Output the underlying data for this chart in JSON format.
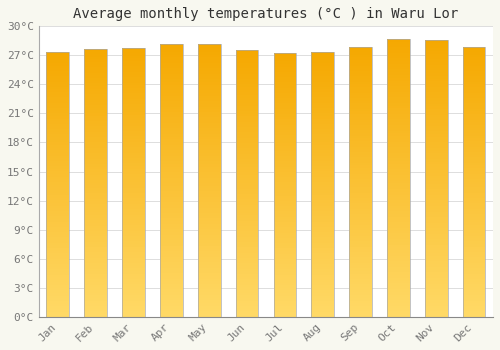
{
  "title": "Average monthly temperatures (°C ) in Waru Lor",
  "months": [
    "Jan",
    "Feb",
    "Mar",
    "Apr",
    "May",
    "Jun",
    "Jul",
    "Aug",
    "Sep",
    "Oct",
    "Nov",
    "Dec"
  ],
  "values": [
    27.3,
    27.7,
    27.8,
    28.2,
    28.2,
    27.6,
    27.2,
    27.3,
    27.9,
    28.7,
    28.6,
    27.9
  ],
  "bar_color_dark": "#F5A800",
  "bar_color_light": "#FFD966",
  "bar_edge_color": "#AAAAAA",
  "background_color": "#F8F8F0",
  "plot_bg_color": "#FFFFFF",
  "grid_color": "#DDDDDD",
  "ylim": [
    0,
    30
  ],
  "yticks": [
    0,
    3,
    6,
    9,
    12,
    15,
    18,
    21,
    24,
    27,
    30
  ],
  "ylabel_suffix": "°C",
  "title_fontsize": 10,
  "tick_fontsize": 8,
  "bar_width": 0.6,
  "fig_width": 5.0,
  "fig_height": 3.5,
  "dpi": 100
}
